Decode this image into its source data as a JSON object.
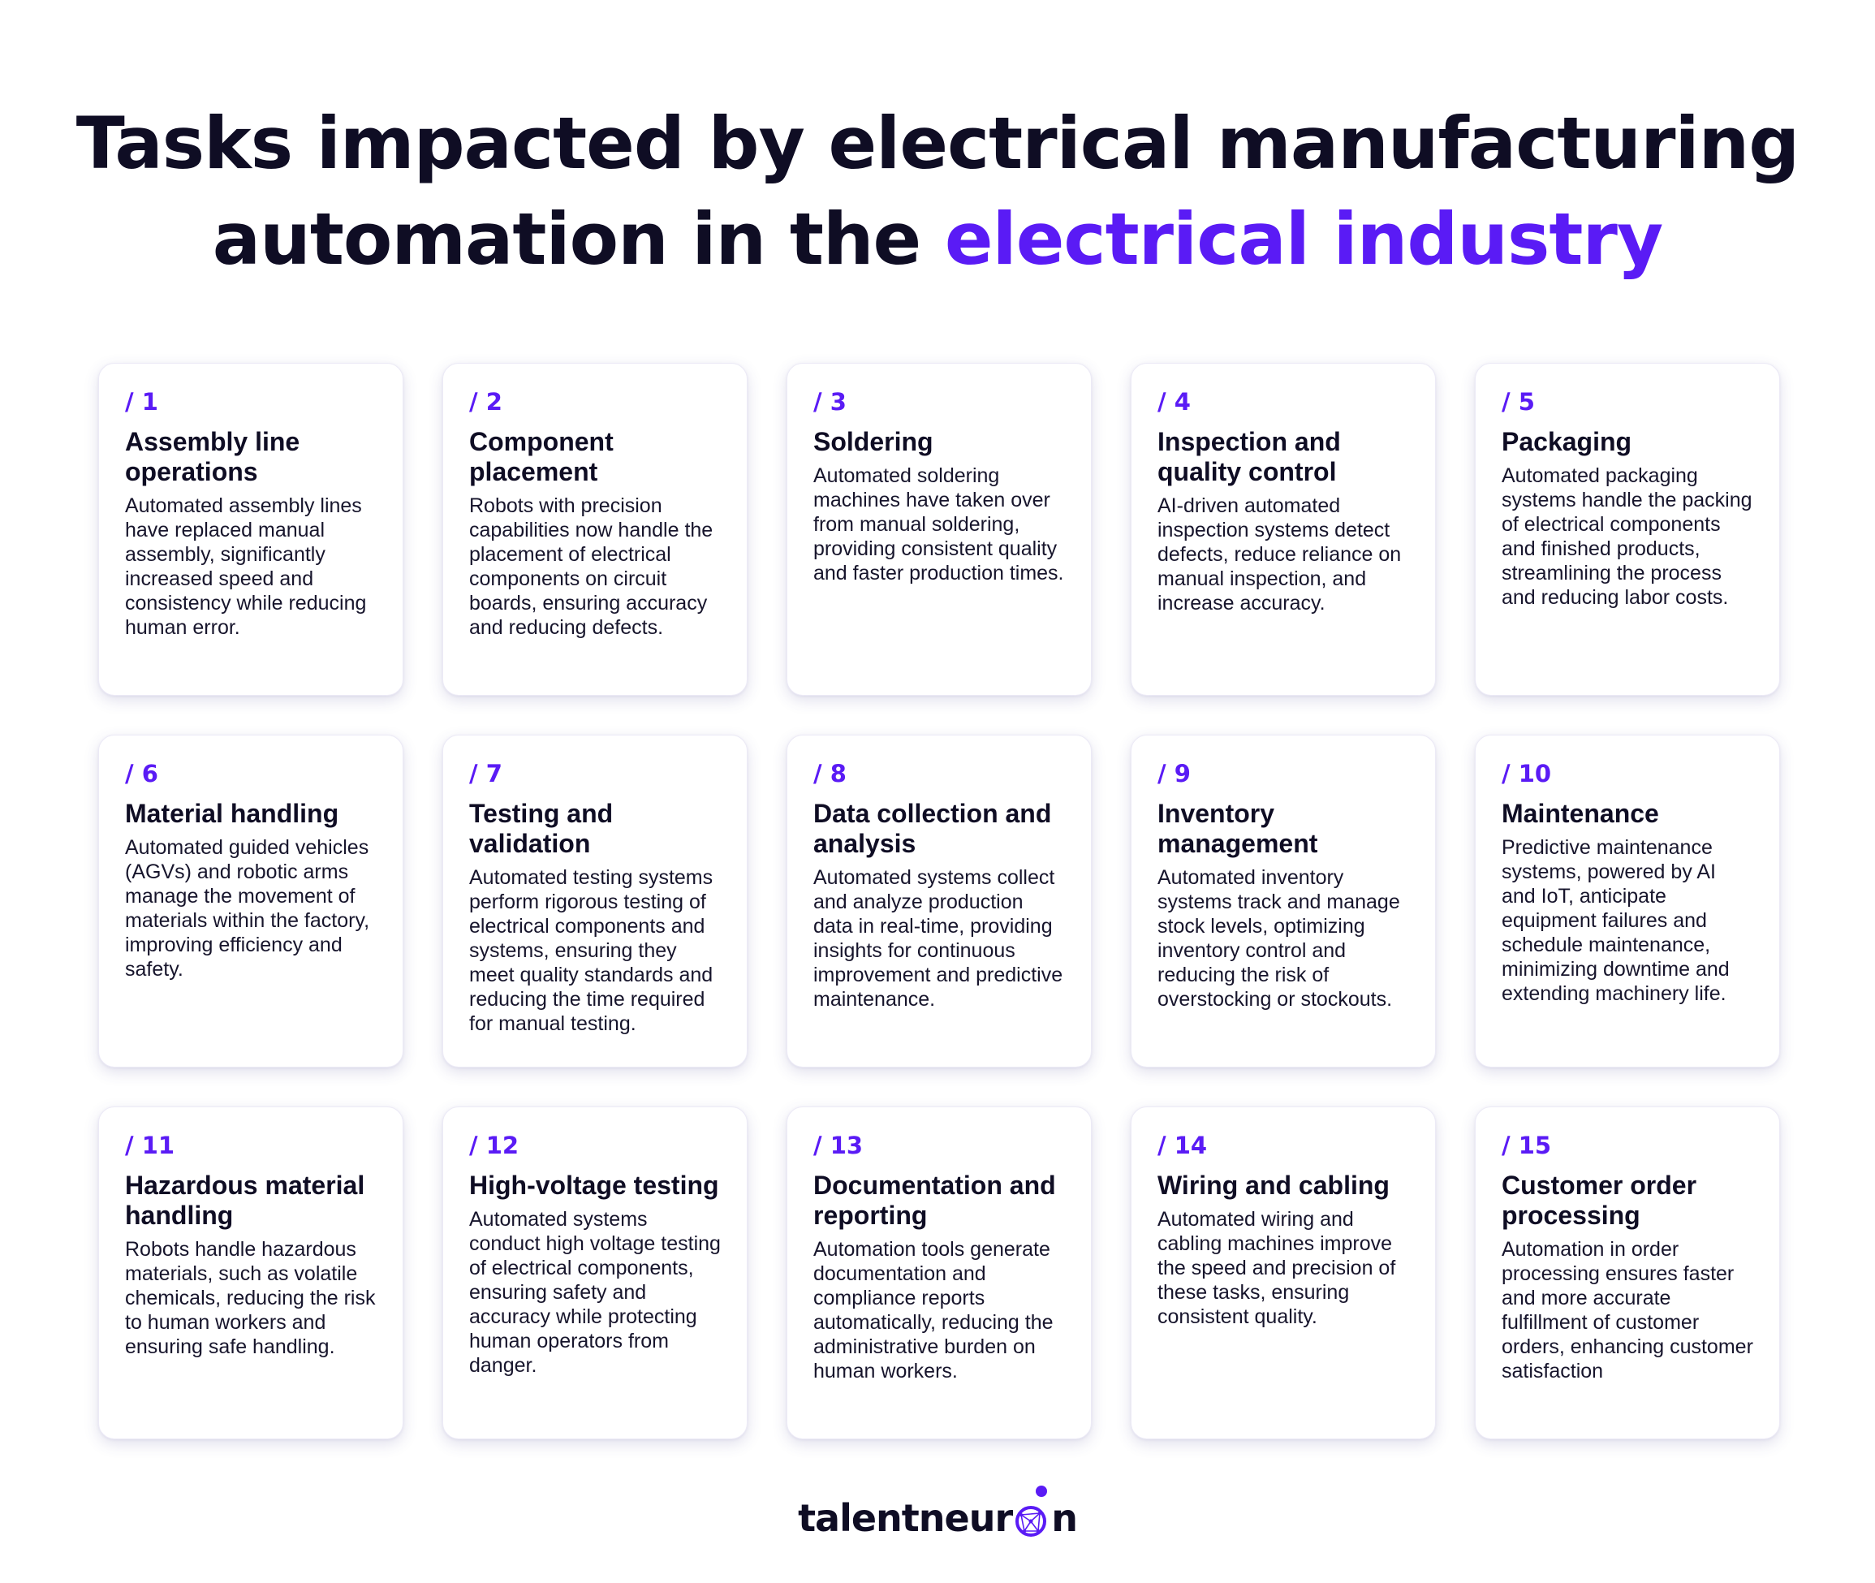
{
  "header": {
    "title_line1": "Tasks impacted by electrical manufacturing",
    "title_line2_plain": "automation in the ",
    "title_line2_accent": "electrical industry"
  },
  "cards": [
    {
      "num": "/ 1",
      "title": "Assembly line operations",
      "desc": "Automated assembly lines have replaced manual assembly, significantly increased speed and consistency while reducing human error."
    },
    {
      "num": "/ 2",
      "title": "Component placement",
      "desc": "Robots with precision capabilities now handle the placement of electrical components on circuit boards, ensuring accuracy and reducing defects."
    },
    {
      "num": "/ 3",
      "title": "Soldering",
      "desc": "Automated soldering machines have taken over from manual soldering, providing consistent quality and faster production times."
    },
    {
      "num": "/ 4",
      "title": "Inspection and quality control",
      "desc": "AI-driven automated inspection systems detect defects, reduce reliance on manual inspection, and increase accuracy."
    },
    {
      "num": "/ 5",
      "title": "Packaging",
      "desc": "Automated packaging systems handle the packing of electrical components and finished products, streamlining the process and reducing labor costs."
    },
    {
      "num": "/ 6",
      "title": "Material handling",
      "desc": "Automated guided vehicles (AGVs) and robotic arms manage the movement of materials within the factory, improving efficiency and safety."
    },
    {
      "num": "/ 7",
      "title": "Testing and validation",
      "desc": "Automated testing systems perform rigorous testing of electrical components and systems, ensuring they meet quality standards and reducing the time required for manual testing."
    },
    {
      "num": "/ 8",
      "title": "Data collection and analysis",
      "desc": "Automated systems collect and analyze production data in real-time, providing insights for continuous improvement and predictive maintenance."
    },
    {
      "num": "/ 9",
      "title": "Inventory management",
      "desc": "Automated inventory systems track and manage stock levels, optimizing inventory control and reducing the risk of overstocking or stockouts."
    },
    {
      "num": "/ 10",
      "title": "Maintenance",
      "desc": "Predictive maintenance systems, powered by AI and IoT, anticipate equipment failures and schedule maintenance, minimizing downtime and extending machinery life."
    },
    {
      "num": "/ 11",
      "title": "Hazardous material handling",
      "desc": "Robots handle hazardous materials, such as volatile chemicals, reducing the risk to human workers and ensuring safe handling."
    },
    {
      "num": "/ 12",
      "title": "High-voltage testing",
      "desc": "Automated systems conduct high voltage testing of electrical components, ensuring safety and accuracy while protecting human operators from danger."
    },
    {
      "num": "/ 13",
      "title": "Documentation and reporting",
      "desc": "Automation tools generate documentation and compliance reports automatically, reducing the administrative burden on human workers."
    },
    {
      "num": "/ 14",
      "title": "Wiring and cabling",
      "desc": "Automated wiring and cabling machines improve the speed and precision of these tasks, ensuring consistent quality."
    },
    {
      "num": "/ 15",
      "title": "Customer order processing",
      "desc": "Automation in order processing ensures faster and more accurate fulfillment of customer orders, enhancing customer satisfaction"
    }
  ],
  "logo": {
    "text_before": "talentneur",
    "text_after": "n",
    "icon": "neuron-o-icon"
  },
  "colors": {
    "accent": "#5a1bf5",
    "text": "#0f0d24",
    "background": "#ffffff"
  }
}
